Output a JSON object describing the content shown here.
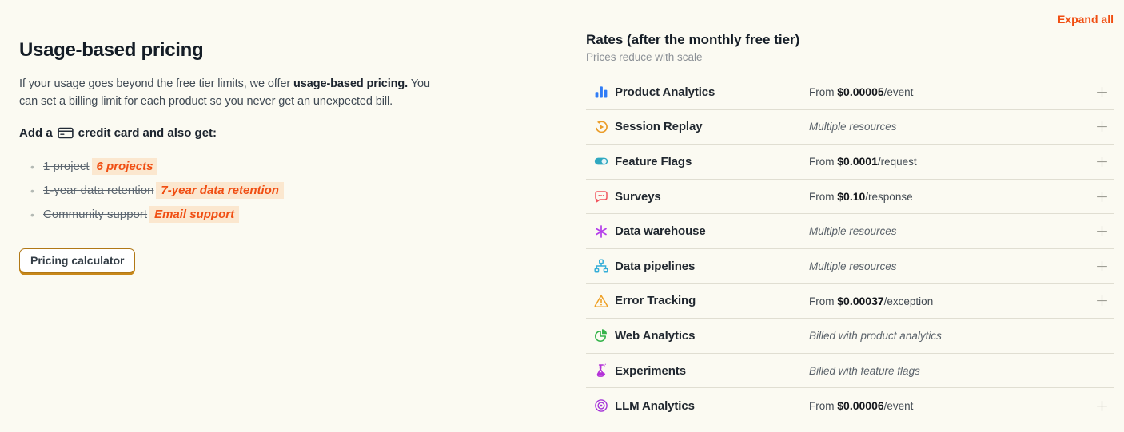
{
  "left": {
    "title": "Usage-based pricing",
    "intro": {
      "text_before": "If your usage goes beyond the free tier limits, we offer ",
      "bold": "usage-based pricing.",
      "text_after": " You can set a billing limit for each product so you never get an unexpected bill."
    },
    "add_card": {
      "before_icon": "Add a",
      "after_icon": "credit card and also get:"
    },
    "benefits": [
      {
        "old": "1 project",
        "new": "6 projects"
      },
      {
        "old": "1-year data retention",
        "new": "7-year data retention"
      },
      {
        "old": "Community support",
        "new": "Email support"
      }
    ],
    "button_label": "Pricing calculator"
  },
  "rates": {
    "expand_all_label": "Expand all",
    "title": "Rates (after the monthly free tier)",
    "subtitle": "Prices reduce with scale",
    "rows": [
      {
        "icon": "bar-chart-icon",
        "color": "#2f7cf6",
        "name": "Product Analytics",
        "price_prefix": "From ",
        "price": "$0.00005",
        "unit": "/event",
        "note": "",
        "expandable": true
      },
      {
        "icon": "session-replay-icon",
        "color": "#eb9d2a",
        "name": "Session Replay",
        "price_prefix": "",
        "price": "",
        "unit": "",
        "note": "Multiple resources",
        "expandable": true
      },
      {
        "icon": "toggle-icon",
        "color": "#2fa8c0",
        "name": "Feature Flags",
        "price_prefix": "From ",
        "price": "$0.0001",
        "unit": "/request",
        "note": "",
        "expandable": true
      },
      {
        "icon": "chat-bubble-icon",
        "color": "#f1545e",
        "name": "Surveys",
        "price_prefix": "From ",
        "price": "$0.10",
        "unit": "/response",
        "note": "",
        "expandable": true
      },
      {
        "icon": "asterisk-icon",
        "color": "#b43cea",
        "name": "Data warehouse",
        "price_prefix": "",
        "price": "",
        "unit": "",
        "note": "Multiple resources",
        "expandable": true
      },
      {
        "icon": "pipeline-icon",
        "color": "#35aed8",
        "name": "Data pipelines",
        "price_prefix": "",
        "price": "",
        "unit": "",
        "note": "Multiple resources",
        "expandable": true
      },
      {
        "icon": "warning-icon",
        "color": "#efa024",
        "name": "Error Tracking",
        "price_prefix": "From ",
        "price": "$0.00037",
        "unit": "/exception",
        "note": "",
        "expandable": true
      },
      {
        "icon": "pie-chart-icon",
        "color": "#36b44c",
        "name": "Web Analytics",
        "price_prefix": "",
        "price": "",
        "unit": "",
        "note": "Billed with product analytics",
        "expandable": false
      },
      {
        "icon": "flask-icon",
        "color": "#b432d8",
        "name": "Experiments",
        "price_prefix": "",
        "price": "",
        "unit": "",
        "note": "Billed with feature flags",
        "expandable": false
      },
      {
        "icon": "target-icon",
        "color": "#a432d8",
        "name": "LLM Analytics",
        "price_prefix": "From ",
        "price": "$0.00006",
        "unit": "/event",
        "note": "",
        "expandable": true
      }
    ]
  },
  "colors": {
    "background": "#fbfaf2",
    "accent_orange": "#f04e12",
    "highlight_bg": "#fbe7cf",
    "button_border": "#b17816",
    "divider": "#e0ded2",
    "plus_gray": "#9e9e95"
  }
}
